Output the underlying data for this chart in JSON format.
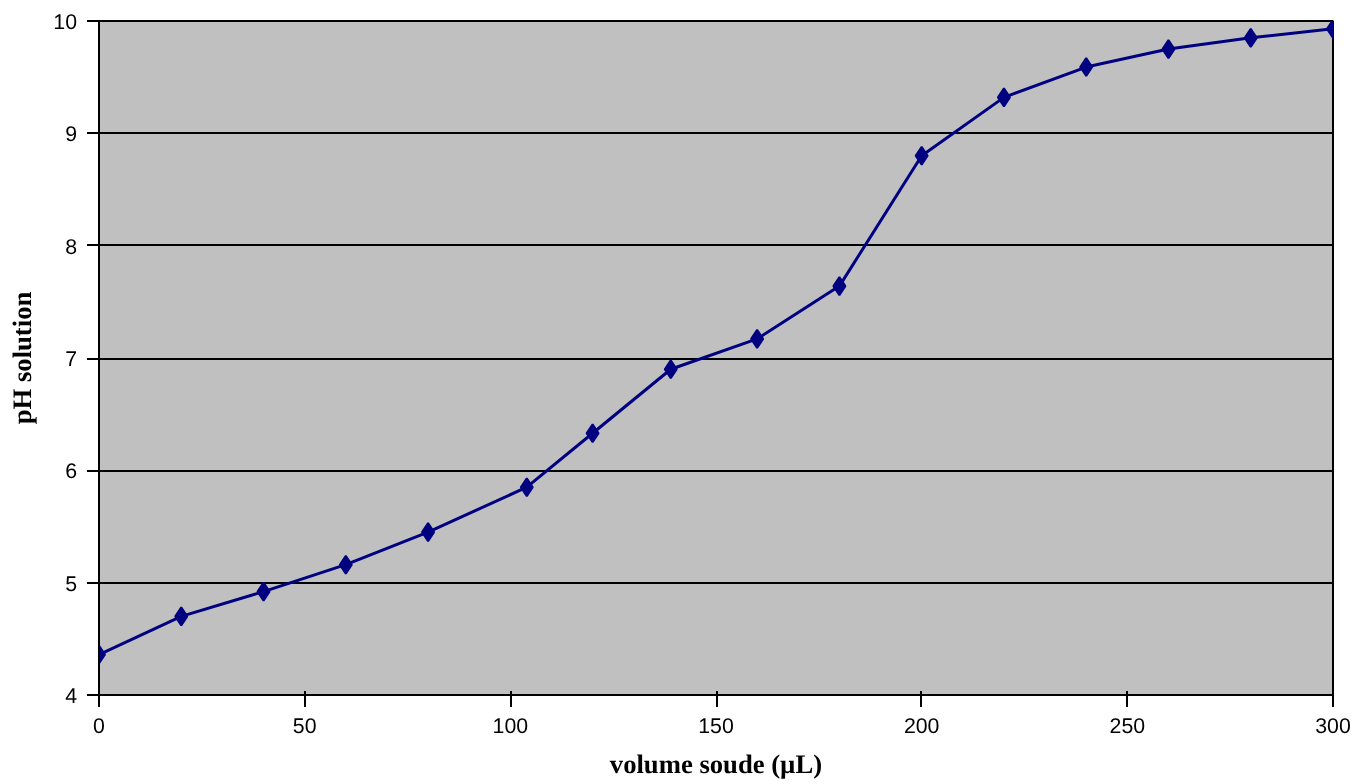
{
  "chart_data": {
    "type": "line",
    "xlabel": "volume soude (µL)",
    "ylabel": "pH solution",
    "x": [
      0,
      20,
      40,
      60,
      80,
      104,
      120,
      139,
      160,
      180,
      200,
      220,
      240,
      260,
      280,
      300
    ],
    "series": [
      {
        "color": "#000080",
        "values": [
          4.36,
          4.7,
          4.92,
          5.16,
          5.45,
          5.85,
          6.33,
          6.9,
          7.17,
          7.64,
          8.8,
          9.32,
          9.59,
          9.75,
          9.85,
          9.93
        ]
      }
    ],
    "xlim": [
      0,
      300
    ],
    "xticks": [
      0,
      50,
      100,
      150,
      200,
      250,
      300
    ],
    "ylim": [
      4,
      10
    ],
    "yticks": [
      4,
      5,
      6,
      7,
      8,
      9,
      10
    ],
    "grid": "y",
    "marker": "diamond",
    "line_style": "solid"
  }
}
